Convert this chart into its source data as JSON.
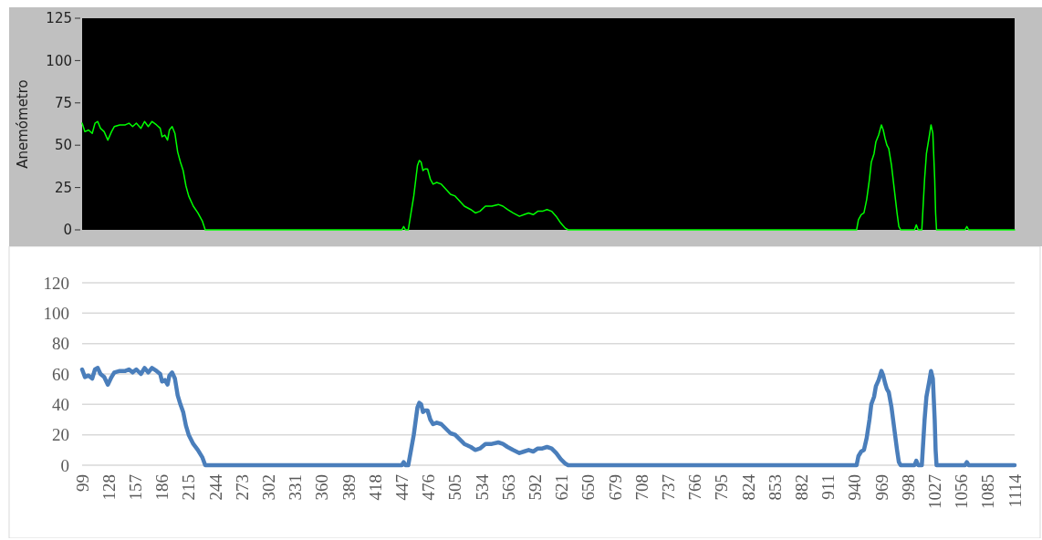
{
  "chart_data": [
    {
      "type": "line",
      "ylabel": "Anemómetro",
      "xlim": [
        99,
        1114
      ],
      "xticks": [
        99,
        128,
        157,
        186,
        215,
        244,
        273,
        302,
        331,
        360,
        389,
        418,
        447,
        476,
        505,
        534,
        563,
        592,
        621,
        650,
        679,
        708,
        737,
        766,
        795,
        824,
        853,
        882,
        911,
        940,
        969,
        998,
        1027,
        1056,
        1085,
        1114
      ],
      "ylim": [
        0,
        125
      ],
      "yticks": [
        0,
        25,
        50,
        75,
        100,
        125
      ],
      "tick_labels": "y",
      "grid": false,
      "marker": "none",
      "line_style": "solid",
      "series": [
        {
          "color": "#00ff00",
          "x": [
            99,
            102,
            106,
            110,
            113,
            116,
            119,
            123,
            127,
            131,
            134,
            140,
            146,
            150,
            154,
            158,
            163,
            167,
            171,
            175,
            180,
            184,
            186,
            189,
            192,
            194,
            197,
            200,
            203,
            206,
            209,
            212,
            215,
            220,
            225,
            230,
            233,
            447,
            449,
            451,
            454,
            457,
            460,
            464,
            466,
            468,
            470,
            472,
            475,
            478,
            481,
            485,
            490,
            495,
            500,
            505,
            510,
            515,
            522,
            527,
            532,
            538,
            545,
            552,
            557,
            562,
            568,
            575,
            580,
            585,
            590,
            595,
            600,
            605,
            610,
            615,
            620,
            625,
            628,
            942,
            944,
            947,
            950,
            953,
            956,
            958,
            961,
            963,
            966,
            969,
            971,
            973,
            975,
            977,
            980,
            983,
            986,
            988,
            990,
            1005,
            1007,
            1009,
            1013,
            1016,
            1018,
            1021,
            1023,
            1025,
            1027,
            1028,
            1029,
            1060,
            1062,
            1064,
            1114
          ],
          "values": [
            63,
            58,
            59,
            57,
            63,
            64,
            60,
            58,
            53,
            58,
            61,
            62,
            62,
            63,
            61,
            63,
            60,
            64,
            61,
            64,
            62,
            60,
            55,
            56,
            53,
            59,
            61,
            57,
            46,
            40,
            35,
            26,
            20,
            14,
            10,
            5,
            0,
            0,
            2,
            0,
            0,
            10,
            20,
            38,
            41,
            40,
            35,
            36,
            36,
            30,
            27,
            28,
            27,
            24,
            21,
            20,
            17,
            14,
            12,
            10,
            11,
            14,
            14,
            15,
            14,
            12,
            10,
            8,
            9,
            10,
            9,
            11,
            11,
            12,
            11,
            8,
            4,
            1,
            0,
            0,
            6,
            9,
            10,
            18,
            30,
            40,
            45,
            52,
            56,
            62,
            59,
            54,
            50,
            48,
            38,
            24,
            10,
            2,
            0,
            0,
            3,
            0,
            0,
            30,
            45,
            55,
            62,
            57,
            30,
            10,
            0,
            0,
            2,
            0,
            0
          ]
        }
      ]
    },
    {
      "type": "line",
      "xlim": [
        99,
        1114
      ],
      "xticks": [
        99,
        128,
        157,
        186,
        215,
        244,
        273,
        302,
        331,
        360,
        389,
        418,
        447,
        476,
        505,
        534,
        563,
        592,
        621,
        650,
        679,
        708,
        737,
        766,
        795,
        824,
        853,
        882,
        911,
        940,
        969,
        998,
        1027,
        1056,
        1085,
        1114
      ],
      "ylim": [
        0,
        120
      ],
      "yticks": [
        0,
        20,
        40,
        60,
        80,
        100,
        120
      ],
      "grid": "y",
      "marker": "none",
      "line_style": "solid",
      "series": [
        {
          "color": "#4a7ebb",
          "x": [
            99,
            102,
            106,
            110,
            113,
            116,
            119,
            123,
            127,
            131,
            134,
            140,
            146,
            150,
            154,
            158,
            163,
            167,
            171,
            175,
            180,
            184,
            186,
            189,
            192,
            194,
            197,
            200,
            203,
            206,
            209,
            212,
            215,
            220,
            225,
            230,
            233,
            447,
            449,
            451,
            454,
            457,
            460,
            464,
            466,
            468,
            470,
            472,
            475,
            478,
            481,
            485,
            490,
            495,
            500,
            505,
            510,
            515,
            522,
            527,
            532,
            538,
            545,
            552,
            557,
            562,
            568,
            575,
            580,
            585,
            590,
            595,
            600,
            605,
            610,
            615,
            620,
            625,
            628,
            942,
            944,
            947,
            950,
            953,
            956,
            958,
            961,
            963,
            966,
            969,
            971,
            973,
            975,
            977,
            980,
            983,
            986,
            988,
            990,
            1005,
            1007,
            1009,
            1013,
            1016,
            1018,
            1021,
            1023,
            1025,
            1027,
            1028,
            1029,
            1060,
            1062,
            1064,
            1114
          ],
          "values": [
            63,
            58,
            59,
            57,
            63,
            64,
            60,
            58,
            53,
            58,
            61,
            62,
            62,
            63,
            61,
            63,
            60,
            64,
            61,
            64,
            62,
            60,
            55,
            56,
            53,
            59,
            61,
            57,
            46,
            40,
            35,
            26,
            20,
            14,
            10,
            5,
            0,
            0,
            2,
            0,
            0,
            10,
            20,
            38,
            41,
            40,
            35,
            36,
            36,
            30,
            27,
            28,
            27,
            24,
            21,
            20,
            17,
            14,
            12,
            10,
            11,
            14,
            14,
            15,
            14,
            12,
            10,
            8,
            9,
            10,
            9,
            11,
            11,
            12,
            11,
            8,
            4,
            1,
            0,
            0,
            6,
            9,
            10,
            18,
            30,
            40,
            45,
            52,
            56,
            62,
            59,
            54,
            50,
            48,
            38,
            24,
            10,
            2,
            0,
            0,
            3,
            0,
            0,
            30,
            45,
            55,
            62,
            57,
            30,
            10,
            0,
            0,
            2,
            0,
            0
          ]
        }
      ]
    }
  ]
}
